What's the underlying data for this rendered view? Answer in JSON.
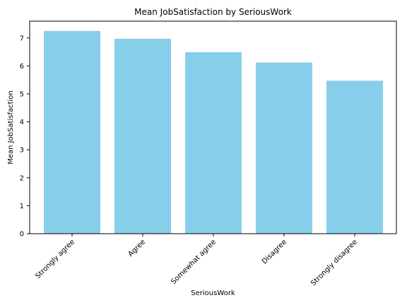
{
  "chart_data": {
    "type": "bar",
    "title": "Mean JobSatisfaction by SeriousWork",
    "xlabel": "SeriousWork",
    "ylabel": "Mean JobSatisfaction",
    "categories": [
      "Strongly agree",
      "Agree",
      "Somewhat agree",
      "Disagree",
      "Strongly disagree"
    ],
    "values": [
      7.25,
      6.97,
      6.49,
      6.12,
      5.47
    ],
    "ylim": [
      0,
      7.6
    ],
    "yticks": [
      0,
      1,
      2,
      3,
      4,
      5,
      6,
      7
    ],
    "bar_color": "#87ceeb",
    "grid": false,
    "legend": "none"
  }
}
